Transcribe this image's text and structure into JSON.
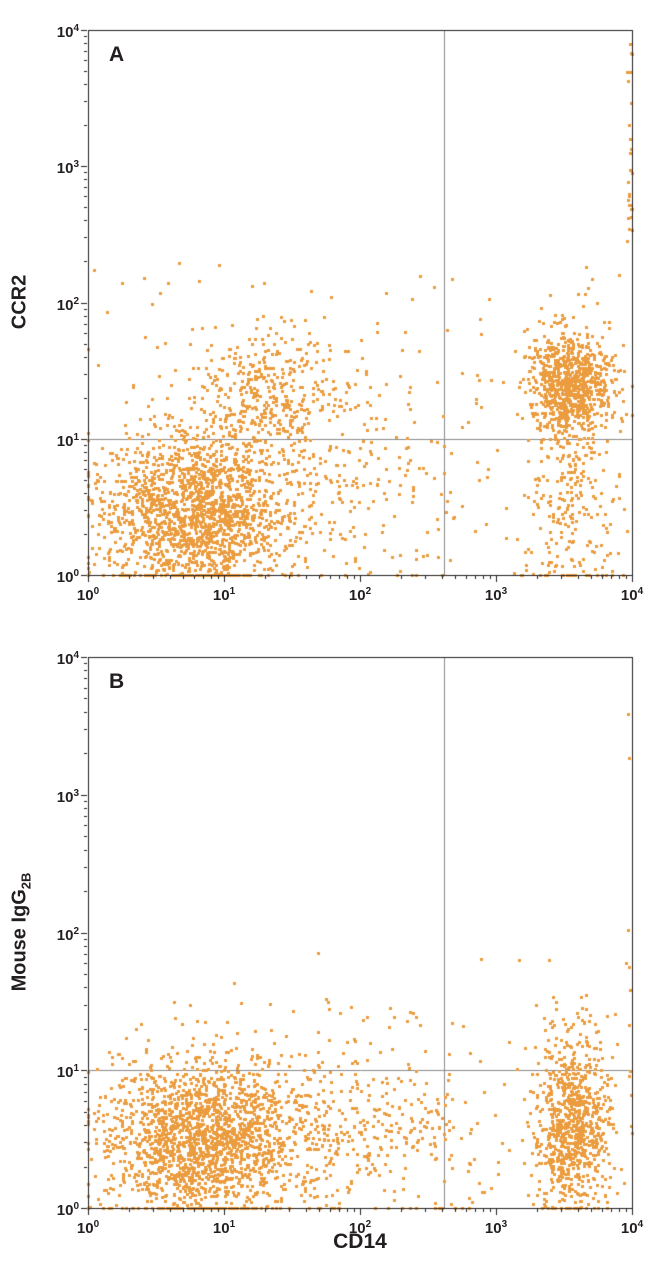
{
  "figure": {
    "x_axis_label": "CD14",
    "panels": [
      {
        "label": "A",
        "y_axis": {
          "label": "CCR2",
          "sub": ""
        }
      },
      {
        "label": "B",
        "y_axis": {
          "label": "Mouse IgG",
          "sub": "2B"
        }
      }
    ],
    "colors": {
      "background": "#ffffff",
      "axis": "#231f20",
      "gate": "#8a8a8a",
      "text": "#231f20",
      "dot": "#EB9C3E"
    }
  },
  "chart_data": {
    "type": "scatter",
    "x_scale": "log10",
    "y_scale": "log10",
    "xlabel": "CD14",
    "xlim_log": [
      0,
      4
    ],
    "ylim_log": [
      0,
      4
    ],
    "x_ticks_exponents": [
      0,
      1,
      2,
      3,
      4
    ],
    "y_ticks_exponents": [
      0,
      1,
      2,
      3,
      4
    ],
    "dot_color": "#EB9C3E",
    "gates": {
      "x_log": 2.62,
      "y_log": 1.0,
      "x_value": 420,
      "y_value": 10
    },
    "panels": [
      {
        "name": "A",
        "ylabel": "CCR2",
        "populations": [
          {
            "name": "double-negative-main",
            "n": 1700,
            "mean_log": [
              0.78,
              0.46
            ],
            "sd_log": [
              0.34,
              0.3
            ]
          },
          {
            "name": "left-positive-scatter",
            "n": 380,
            "mean_log": [
              1.28,
              1.34
            ],
            "sd_log": [
              0.31,
              0.24
            ]
          },
          {
            "name": "mid-bridge-noise",
            "n": 260,
            "mean_log": [
              1.78,
              0.62
            ],
            "sd_log": [
              0.55,
              0.42
            ]
          },
          {
            "name": "cd14pos-ccr2pos-cluster",
            "n": 820,
            "mean_log": [
              3.55,
              1.41
            ],
            "sd_log": [
              0.145,
              0.205
            ]
          },
          {
            "name": "cd14pos-ccr2low-tail",
            "n": 250,
            "mean_log": [
              3.53,
              0.55
            ],
            "sd_log": [
              0.16,
              0.38
            ]
          },
          {
            "name": "sparse-noise",
            "n": 140,
            "uniform_log": [
              [
                0.0,
                4.0
              ],
              [
                0.0,
                2.3
              ]
            ]
          },
          {
            "name": "right-edge-pileup",
            "n": 26,
            "uniform_log": [
              [
                3.965,
                4.0
              ],
              [
                2.45,
                4.0
              ]
            ]
          }
        ]
      },
      {
        "name": "B",
        "ylabel": "Mouse IgG2B",
        "populations": [
          {
            "name": "double-negative-main",
            "n": 1750,
            "mean_log": [
              0.82,
              0.5
            ],
            "sd_log": [
              0.36,
              0.29
            ]
          },
          {
            "name": "mid-bridge-noise",
            "n": 420,
            "mean_log": [
              1.9,
              0.55
            ],
            "sd_log": [
              0.55,
              0.33
            ]
          },
          {
            "name": "cd14pos-cluster",
            "n": 820,
            "mean_log": [
              3.56,
              0.6
            ],
            "sd_log": [
              0.14,
              0.3
            ]
          },
          {
            "name": "sparse-noise",
            "n": 120,
            "uniform_log": [
              [
                0.0,
                4.0
              ],
              [
                0.0,
                1.5
              ]
            ]
          },
          {
            "name": "high-outliers",
            "n": 14,
            "uniform_log": [
              [
                0.8,
                3.9
              ],
              [
                1.1,
                1.85
              ]
            ]
          },
          {
            "name": "right-edge-pileup",
            "n": 9,
            "uniform_log": [
              [
                3.955,
                4.0
              ],
              [
                0.8,
                3.97
              ]
            ]
          }
        ]
      }
    ]
  }
}
